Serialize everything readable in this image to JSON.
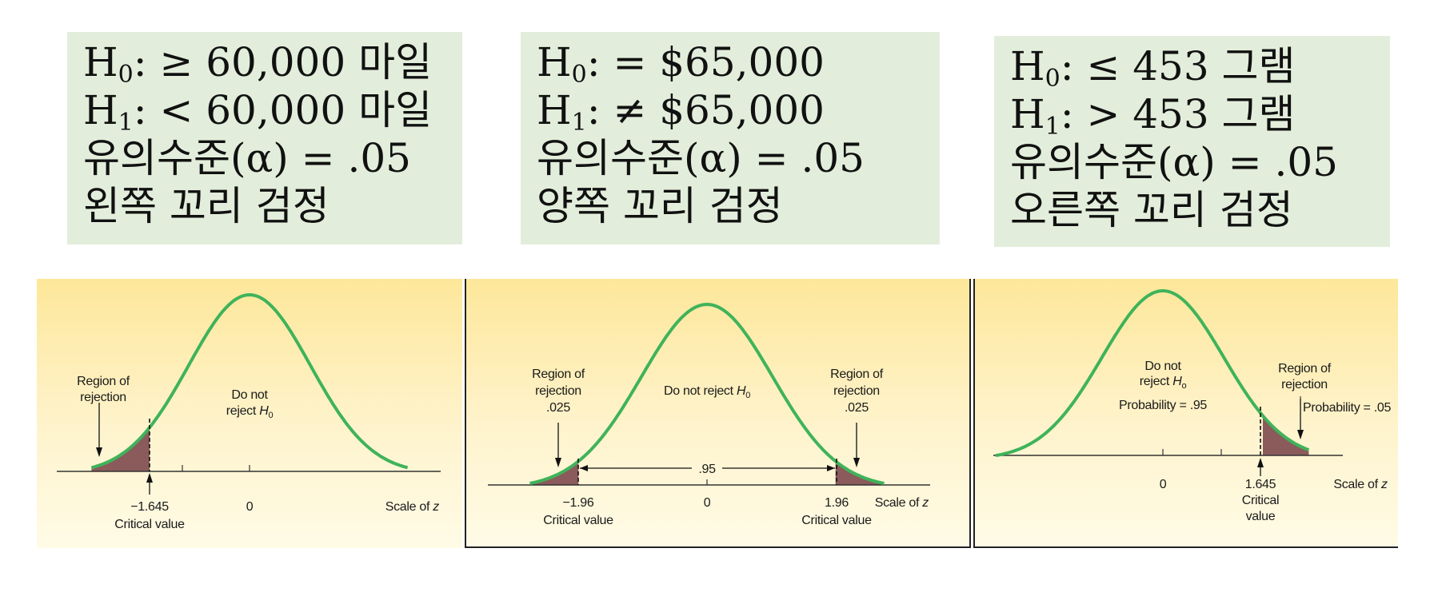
{
  "boxes": [
    {
      "h0_label": "H",
      "h0_sub": "0",
      "h0_rest": ": ≥ 60,000 마일",
      "h1_label": "H",
      "h1_sub": "1",
      "h1_rest": ": < 60,000 마일",
      "alpha": "유의수준(α) = .05",
      "test": "왼쪽 꼬리 검정"
    },
    {
      "h0_label": "H",
      "h0_sub": "0",
      "h0_rest": ": = $65,000",
      "h1_label": "H",
      "h1_sub": "1",
      "h1_rest": ": ≠ $65,000",
      "alpha": "유의수준(α) = .05",
      "test": "양쪽 꼬리 검정"
    },
    {
      "h0_label": "H",
      "h0_sub": "0",
      "h0_rest": ": ≤ 453 그램",
      "h1_label": "H",
      "h1_sub": "1",
      "h1_rest": ": > 453 그램",
      "alpha": "유의수준(α) = .05",
      "test": "오른쪽 꼬리 검정"
    }
  ],
  "diagrams": {
    "left": {
      "region_line1": "Region of",
      "region_line2": "rejection",
      "do_not_line1": "Do not",
      "do_not_line2": "reject",
      "h_letter": "H",
      "h_sub": "0",
      "tick_critical": "−1.645",
      "tick_zero": "0",
      "critical_label": "Critical value",
      "scale_label": "Scale of",
      "z_letter": "z",
      "critical_z": -1.645
    },
    "two": {
      "region_left_1": "Region of",
      "region_left_2": "rejection",
      "region_left_3": ".025",
      "region_right_1": "Region of",
      "region_right_2": "rejection",
      "region_right_3": ".025",
      "do_not": "Do not reject",
      "h_letter": "H",
      "h_sub": "0",
      "middle_prob": ".95",
      "tick_left": "−1.96",
      "tick_zero": "0",
      "tick_right": "1.96",
      "critical_left": "Critical value",
      "critical_right": "Critical value",
      "scale_label": "Scale of",
      "z_letter": "z",
      "critical_z": 1.96
    },
    "right": {
      "do_not_line1": "Do not",
      "do_not_line2": "reject",
      "h_letter": "H",
      "h_sub": "o",
      "prob_accept": "Probability = .95",
      "region_line1": "Region of",
      "region_line2": "rejection",
      "prob_reject": "Probability = .05",
      "tick_zero": "0",
      "tick_critical": "1.645",
      "critical_line1": "Critical",
      "critical_line2": "value",
      "scale_label": "Scale of",
      "z_letter": "z",
      "critical_z": 1.645
    }
  },
  "colors": {
    "box_bg": "#e2eedb",
    "curve": "#3fb35a",
    "tail_fill": "#8b5a5a",
    "panel_top": "#fde79a"
  }
}
